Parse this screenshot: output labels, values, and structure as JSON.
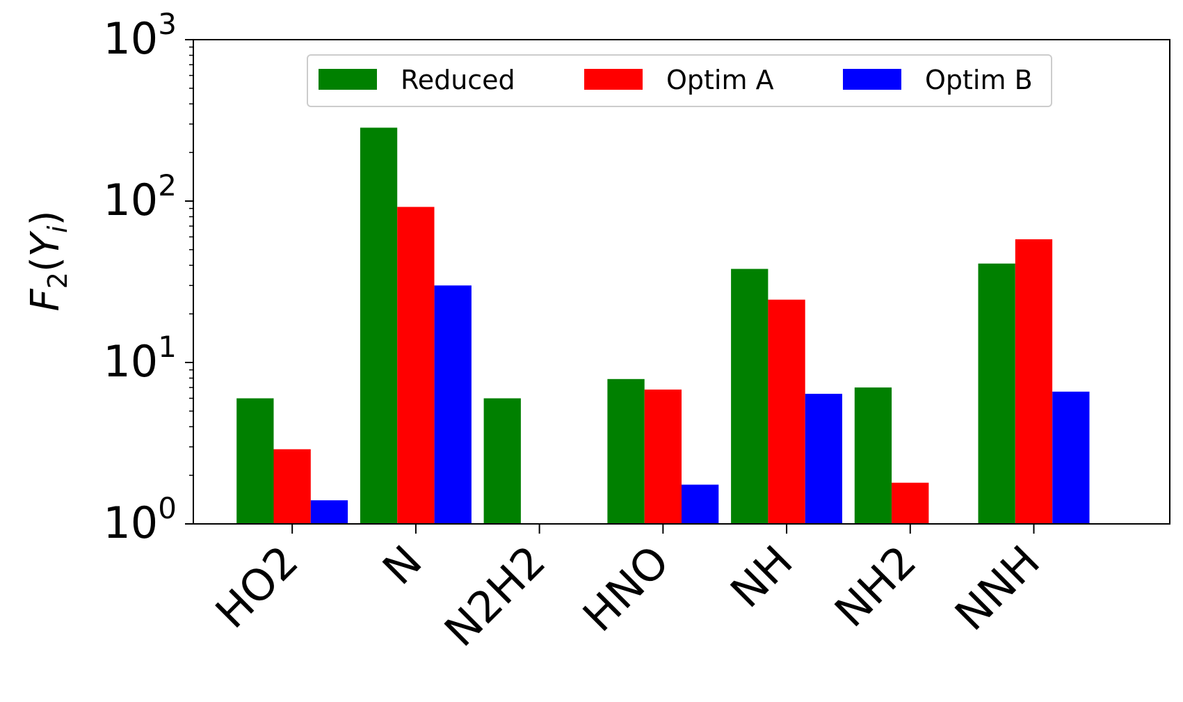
{
  "chart_data": {
    "type": "bar",
    "title": "",
    "xlabel": "",
    "ylabel": {
      "base": "F",
      "sub": "2",
      "open": "(",
      "var": "Y",
      "varsub": "i",
      "close": ")"
    },
    "yscale": "log",
    "ylim": [
      1,
      1000
    ],
    "y_ticks": [
      {
        "value": 1,
        "base": "10",
        "exp": "0"
      },
      {
        "value": 10,
        "base": "10",
        "exp": "1"
      },
      {
        "value": 100,
        "base": "10",
        "exp": "2"
      },
      {
        "value": 1000,
        "base": "10",
        "exp": "3"
      }
    ],
    "categories": [
      "HO2",
      "N",
      "N2H2",
      "HNO",
      "NH",
      "NH2",
      "NNH"
    ],
    "series": [
      {
        "name": "Reduced",
        "color": "#008000",
        "values": [
          6.0,
          285,
          6.0,
          7.9,
          38,
          7.0,
          41
        ]
      },
      {
        "name": "Optim A",
        "color": "#ff0000",
        "values": [
          2.9,
          92,
          1,
          6.8,
          24.5,
          1.8,
          58
        ]
      },
      {
        "name": "Optim B",
        "color": "#0000ff",
        "values": [
          1.4,
          30,
          1,
          1.75,
          6.4,
          1,
          6.6
        ]
      }
    ],
    "legend": {
      "position": "top-center",
      "columns": 3
    },
    "grid": false
  }
}
